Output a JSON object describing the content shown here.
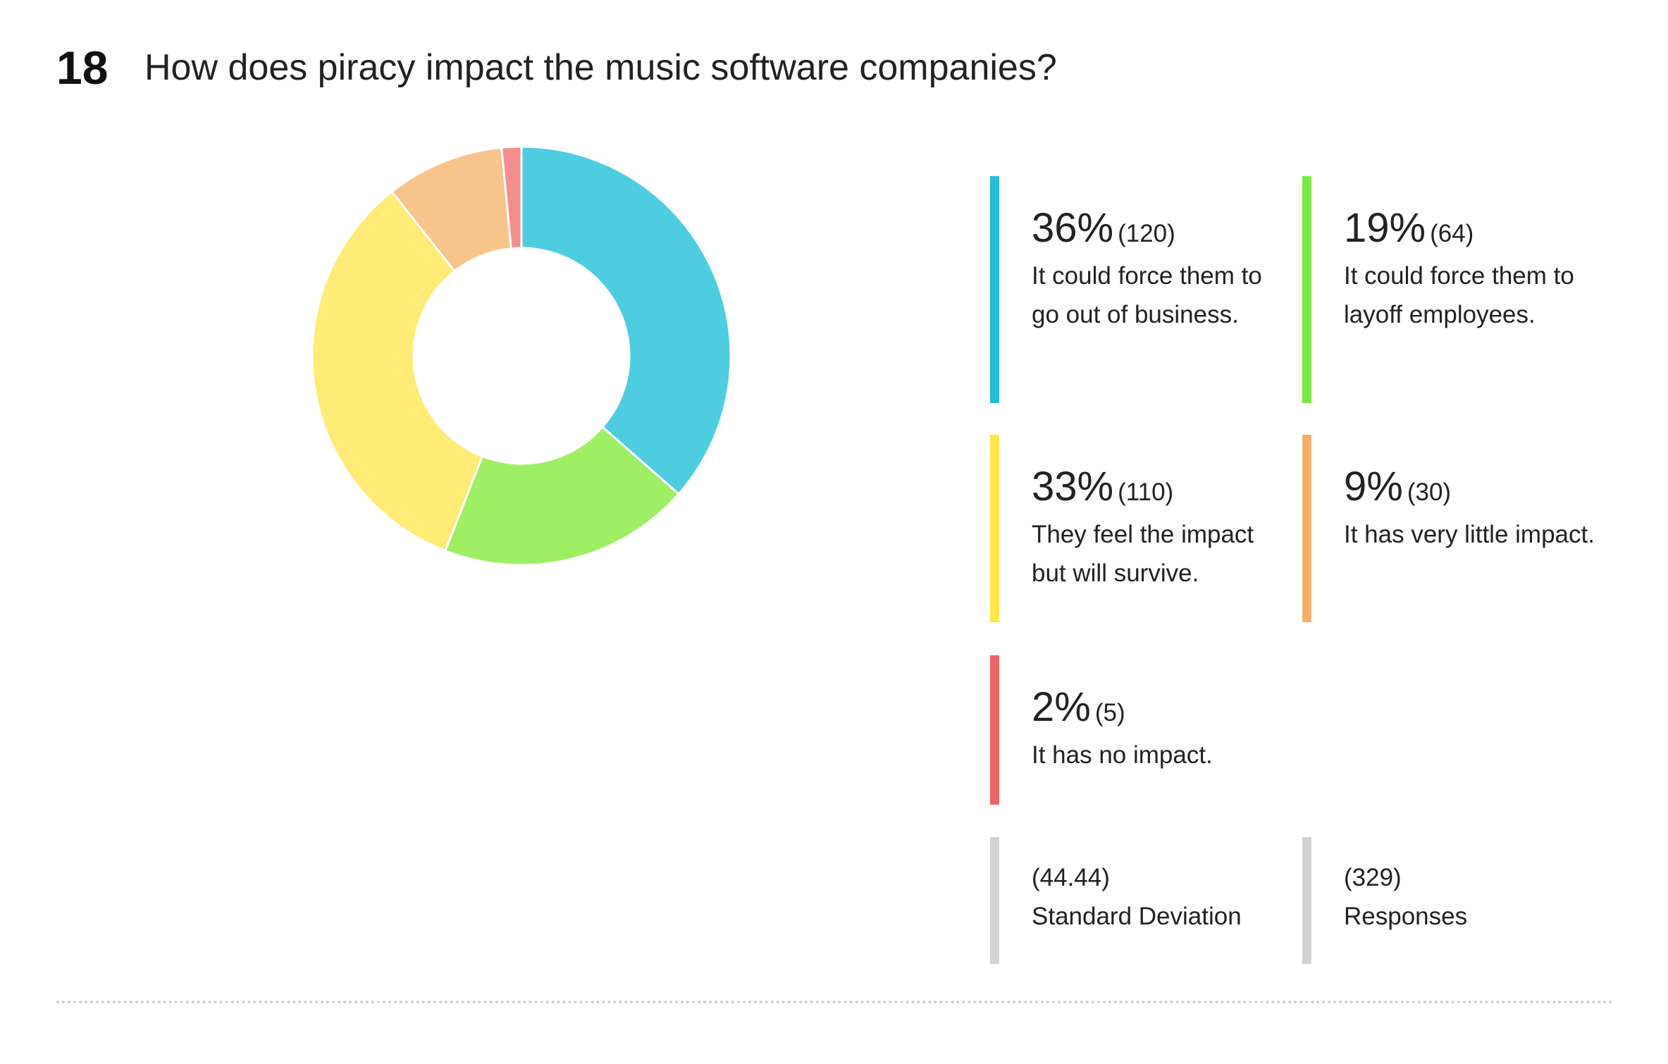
{
  "question": {
    "number": "18",
    "title": "How does piracy impact the music software companies?"
  },
  "chart_data": {
    "type": "pie",
    "donut": true,
    "slices": [
      {
        "label": "It could force them to go out of business.",
        "percent": 36,
        "count": 120,
        "color": "#4ECDE0"
      },
      {
        "label": "It could force them to layoff employees.",
        "percent": 19,
        "count": 64,
        "color": "#9EEF63"
      },
      {
        "label": "They feel the impact but will survive.",
        "percent": 33,
        "count": 110,
        "color": "#FFEB75"
      },
      {
        "label": "It has very little impact.",
        "percent": 9,
        "count": 30,
        "color": "#F7C48C"
      },
      {
        "label": "It has no impact.",
        "percent": 2,
        "count": 5,
        "color": "#F48E8E"
      }
    ]
  },
  "legend": {
    "items": [
      {
        "pct": "36%",
        "count": "(120)",
        "desc": "It could force them to go out of business.",
        "color": "#27BCD8"
      },
      {
        "pct": "19%",
        "count": "(64)",
        "desc": "It could force them to layoff employees.",
        "color": "#7CE843"
      },
      {
        "pct": "33%",
        "count": "(110)",
        "desc": "They feel the impact but will survive.",
        "color": "#FFE546"
      },
      {
        "pct": "9%",
        "count": "(30)",
        "desc": "It has very little impact.",
        "color": "#F2AF6A"
      },
      {
        "pct": "2%",
        "count": "(5)",
        "desc": "It has no impact.",
        "color": "#EB6565"
      }
    ]
  },
  "stats": {
    "std_dev_value": "(44.44)",
    "std_dev_label": "Standard Deviation",
    "responses_value": "(329)",
    "responses_label": "Responses",
    "color": "#D3D3D3"
  }
}
